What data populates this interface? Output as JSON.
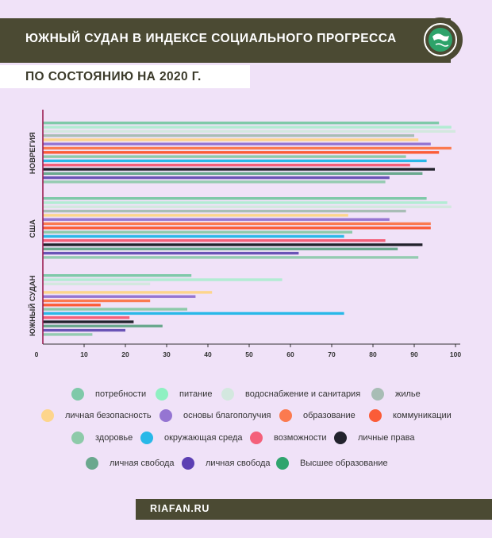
{
  "header": {
    "title": "ЮЖНЫЙ СУДАН В ИНДЕКСЕ СОЦИАЛЬНОГО ПРОГРЕССА",
    "subtitle": "ПО СОСТОЯНИЮ НА 2020 Г."
  },
  "footer": {
    "site": "RIAFAN.RU"
  },
  "logo": {
    "icon": "globe-emblem-icon",
    "color": "#2ea36a"
  },
  "chart_data": {
    "type": "bar",
    "orientation": "horizontal",
    "title": "ЮЖНЫЙ СУДАН В ИНДЕКСЕ СОЦИАЛЬНОГО ПРОГРЕССА",
    "subtitle": "ПО СОСТОЯНИЮ НА 2020 Г.",
    "xlabel": "",
    "ylabel": "",
    "xlim": [
      0,
      100
    ],
    "x_ticks": [
      "0",
      "10",
      "20",
      "30",
      "40",
      "50",
      "60",
      "70",
      "80",
      "90",
      "100"
    ],
    "grid": false,
    "legend_position": "bottom",
    "categories": [
      "НОВРЕГИЯ",
      "США",
      "ЮЖНЫЙ СУДАН"
    ],
    "series": [
      {
        "name": "потребности",
        "color": "#7fc9a9",
        "values": [
          96,
          93,
          36
        ]
      },
      {
        "name": "питание",
        "color": "#b2ecd3",
        "values": [
          99,
          98,
          58
        ]
      },
      {
        "name": "водоснабжение и санитария",
        "color": "#d3e8df",
        "values": [
          100,
          99,
          26
        ]
      },
      {
        "name": "жилье",
        "color": "#a8bdb5",
        "values": [
          90,
          88,
          0
        ]
      },
      {
        "name": "личная безопасность",
        "color": "#fdd58c",
        "values": [
          91,
          74,
          41
        ]
      },
      {
        "name": "основы благополучия",
        "color": "#9575d2",
        "values": [
          94,
          84,
          37
        ]
      },
      {
        "name": "образование",
        "color": "#fb7a4f",
        "values": [
          99,
          94,
          26
        ]
      },
      {
        "name": "коммуникации",
        "color": "#fb5c38",
        "values": [
          96,
          94,
          14
        ]
      },
      {
        "name": "здоровье",
        "color": "#8dcaa9",
        "values": [
          88,
          75,
          35
        ]
      },
      {
        "name": "окружающая среда",
        "color": "#29b8e8",
        "values": [
          93,
          73,
          73
        ]
      },
      {
        "name": "возможности",
        "color": "#f4607a",
        "values": [
          89,
          83,
          21
        ]
      },
      {
        "name": "личные права",
        "color": "#22232d",
        "values": [
          95,
          92,
          22
        ]
      },
      {
        "name": "личная свобода",
        "color": "#6aa88e",
        "values": [
          92,
          86,
          29
        ]
      },
      {
        "name": "личная свобода",
        "color": "#6a54b6",
        "values": [
          84,
          62,
          20
        ]
      },
      {
        "name": "Высшее образование",
        "color": "#94cbb1",
        "values": [
          83,
          91,
          12
        ]
      }
    ]
  },
  "legend": {
    "items": [
      {
        "label": "потребности",
        "color": "#7fc9a9"
      },
      {
        "label": "питание",
        "color": "#8ff0c2"
      },
      {
        "label": "водоснабжение и санитария",
        "color": "#d3e8df"
      },
      {
        "label": "жилье",
        "color": "#a8bdb5"
      },
      {
        "label": "личная безопасность",
        "color": "#fdd58c"
      },
      {
        "label": "основы благополучия",
        "color": "#9575d2"
      },
      {
        "label": "образование",
        "color": "#fb7a4f"
      },
      {
        "label": "коммуникации",
        "color": "#fb5c38"
      },
      {
        "label": "здоровье",
        "color": "#8dcaa9"
      },
      {
        "label": "окружающая среда",
        "color": "#29b8e8"
      },
      {
        "label": "возможности",
        "color": "#f4607a"
      },
      {
        "label": "личные права",
        "color": "#22232d"
      },
      {
        "label": "личная свобода",
        "color": "#6aa88e"
      },
      {
        "label": "личная свобода",
        "color": "#5c3fb3"
      },
      {
        "label": "Высшее образование",
        "color": "#30a46e"
      }
    ]
  }
}
